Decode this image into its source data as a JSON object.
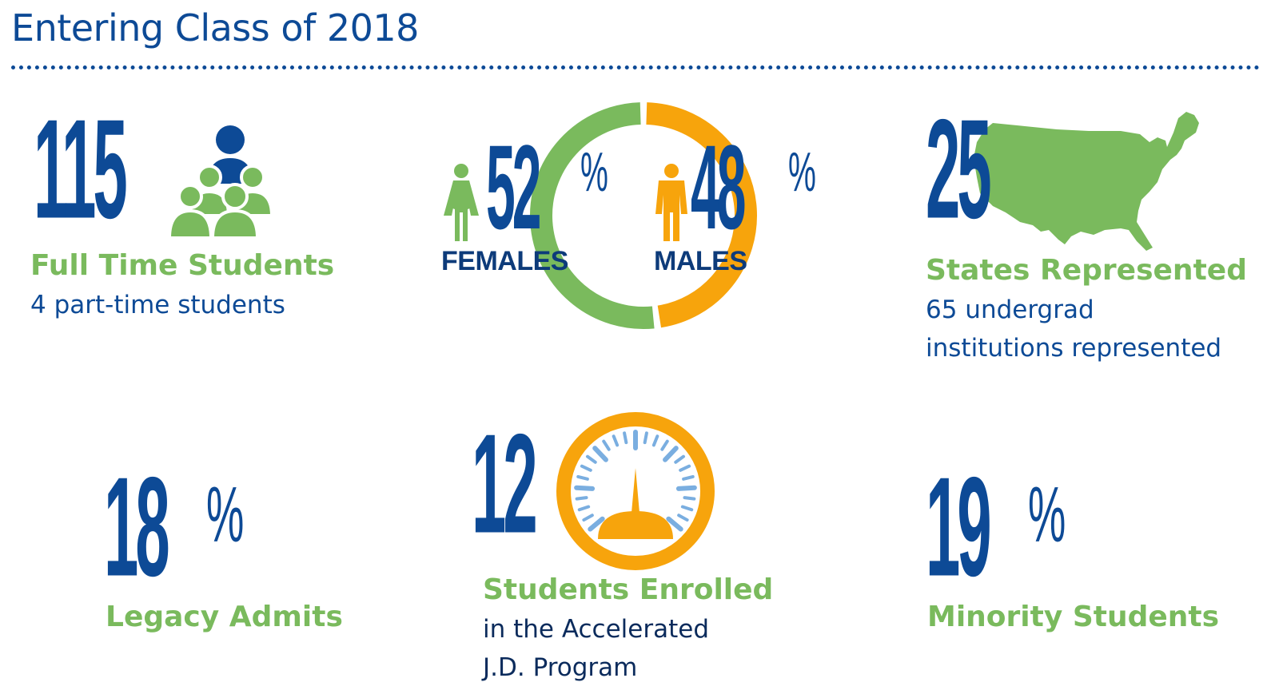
{
  "header": {
    "title": "Entering Class of 2018"
  },
  "full_time": {
    "count": "115",
    "label": "Full Time Students",
    "sublabel": "4 part-time students"
  },
  "gender": {
    "female_pct": "52",
    "female_label": "FEMALES",
    "male_pct": "48",
    "male_label": "MALES",
    "percent_sign": "%",
    "female_share": 0.52,
    "male_share": 0.48
  },
  "states": {
    "count": "25",
    "label": "States Represented",
    "sub_line1": "65 undergrad",
    "sub_line2": "institutions represented"
  },
  "legacy": {
    "pct": "18",
    "percent_sign": "%",
    "label": "Legacy Admits"
  },
  "accelerated": {
    "count": "12",
    "label": "Students Enrolled",
    "sub_line1": "in the Accelerated",
    "sub_line2": "J.D. Program"
  },
  "minority": {
    "pct": "19",
    "percent_sign": "%",
    "label": "Minority Students"
  },
  "colors": {
    "navy": "#0d4a96",
    "green": "#7aba5d",
    "orange": "#f7a40c",
    "light_blue": "#7aaee0"
  }
}
